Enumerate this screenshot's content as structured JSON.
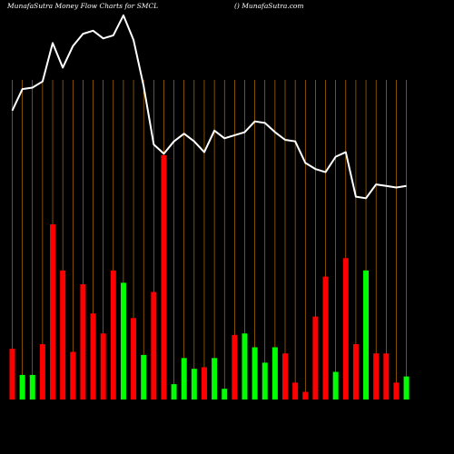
{
  "header": {
    "left_title": "MunafaSutra  Money Flow  Charts for SMCL",
    "right_title": "() MunafaSutra.com"
  },
  "colors": {
    "background": "#000000",
    "grid": "#ff9900",
    "up": "#00ff00",
    "down": "#ff0000",
    "line": "#ffffff"
  },
  "chart_data": {
    "type": "bar",
    "grid": true,
    "categories": [
      "",
      "",
      "",
      "",
      "",
      "",
      "",
      "",
      "",
      "",
      "",
      "",
      "",
      "",
      "",
      "",
      "",
      "",
      "",
      "",
      "",
      "",
      "",
      "",
      "",
      "",
      "",
      "",
      "",
      "",
      "",
      "",
      "",
      "",
      "",
      "",
      "",
      "",
      "",
      ""
    ],
    "bars": [
      {
        "value": 33,
        "color": "red"
      },
      {
        "value": 16,
        "color": "green"
      },
      {
        "value": 16,
        "color": "green"
      },
      {
        "value": 36,
        "color": "red"
      },
      {
        "value": 114,
        "color": "red"
      },
      {
        "value": 84,
        "color": "red"
      },
      {
        "value": 31,
        "color": "red"
      },
      {
        "value": 75,
        "color": "red"
      },
      {
        "value": 56,
        "color": "red"
      },
      {
        "value": 43,
        "color": "red"
      },
      {
        "value": 84,
        "color": "red"
      },
      {
        "value": 76,
        "color": "green"
      },
      {
        "value": 53,
        "color": "red"
      },
      {
        "value": 29,
        "color": "green"
      },
      {
        "value": 70,
        "color": "red"
      },
      {
        "value": 159,
        "color": "red"
      },
      {
        "value": 10,
        "color": "green"
      },
      {
        "value": 27,
        "color": "green"
      },
      {
        "value": 20,
        "color": "green"
      },
      {
        "value": 21,
        "color": "red"
      },
      {
        "value": 27,
        "color": "green"
      },
      {
        "value": 7,
        "color": "green"
      },
      {
        "value": 42,
        "color": "red"
      },
      {
        "value": 43,
        "color": "green"
      },
      {
        "value": 34,
        "color": "green"
      },
      {
        "value": 24,
        "color": "green"
      },
      {
        "value": 34,
        "color": "green"
      },
      {
        "value": 30,
        "color": "red"
      },
      {
        "value": 11,
        "color": "red"
      },
      {
        "value": 5,
        "color": "red"
      },
      {
        "value": 54,
        "color": "red"
      },
      {
        "value": 80,
        "color": "red"
      },
      {
        "value": 18,
        "color": "green"
      },
      {
        "value": 92,
        "color": "red"
      },
      {
        "value": 36,
        "color": "red"
      },
      {
        "value": 84,
        "color": "green"
      },
      {
        "value": 30,
        "color": "red"
      },
      {
        "value": 30,
        "color": "red"
      },
      {
        "value": 11,
        "color": "red"
      },
      {
        "value": 15,
        "color": "green"
      }
    ],
    "line": [
      188,
      202,
      203,
      207,
      232,
      216,
      230,
      238,
      240,
      235,
      237,
      250,
      234,
      204,
      166,
      160,
      168,
      173,
      168,
      161,
      175,
      170,
      172,
      174,
      181,
      180,
      174,
      169,
      168,
      154,
      150,
      148,
      158,
      161,
      132,
      131,
      140,
      139,
      138,
      139
    ],
    "ylim": [
      0,
      260
    ]
  }
}
